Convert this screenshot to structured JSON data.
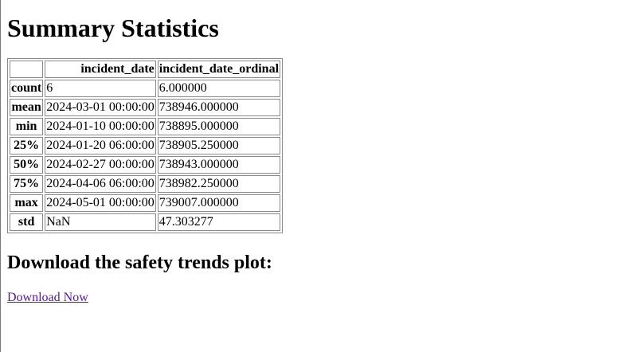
{
  "title": "Summary Statistics",
  "table": {
    "columns": [
      "",
      "incident_date",
      "incident_date_ordinal"
    ],
    "rows": [
      {
        "label": "count",
        "incident_date": "6",
        "incident_date_ordinal": "6.000000"
      },
      {
        "label": "mean",
        "incident_date": "2024-03-01 00:00:00",
        "incident_date_ordinal": "738946.000000"
      },
      {
        "label": "min",
        "incident_date": "2024-01-10 00:00:00",
        "incident_date_ordinal": "738895.000000"
      },
      {
        "label": "25%",
        "incident_date": "2024-01-20 06:00:00",
        "incident_date_ordinal": "738905.250000"
      },
      {
        "label": "50%",
        "incident_date": "2024-02-27 00:00:00",
        "incident_date_ordinal": "738943.000000"
      },
      {
        "label": "75%",
        "incident_date": "2024-04-06 06:00:00",
        "incident_date_ordinal": "738982.250000"
      },
      {
        "label": "max",
        "incident_date": "2024-05-01 00:00:00",
        "incident_date_ordinal": "739007.000000"
      },
      {
        "label": "std",
        "incident_date": "NaN",
        "incident_date_ordinal": "47.303277"
      }
    ]
  },
  "download": {
    "heading": "Download the safety trends plot:",
    "link_text": "Download Now"
  },
  "colors": {
    "link_visited": "#551a8b",
    "border": "#8a8a8a"
  }
}
